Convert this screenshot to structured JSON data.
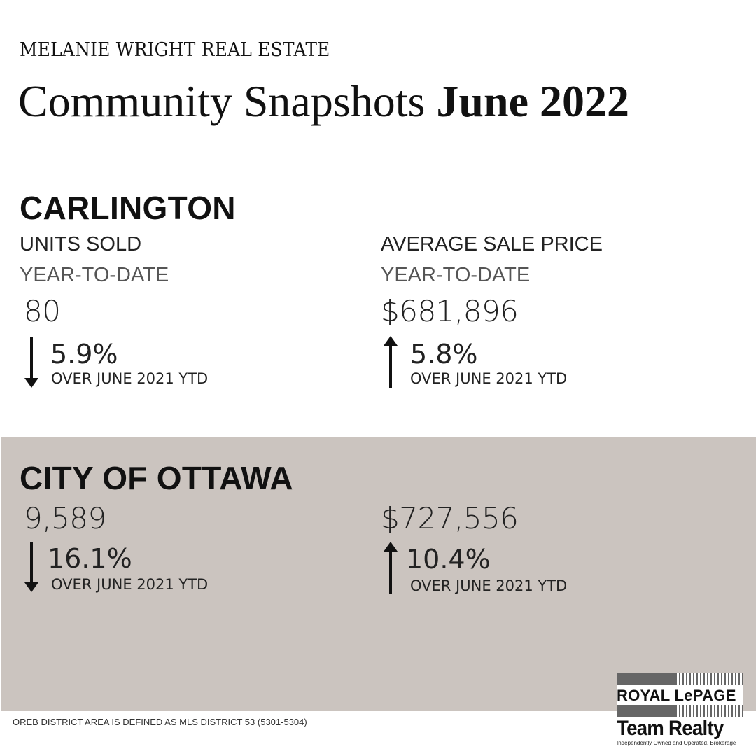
{
  "header": {
    "brand": "MELANIE WRIGHT REAL ESTATE",
    "title_prefix": "Community Snapshots",
    "title_bold": "June 2022"
  },
  "carlington": {
    "name": "CARLINGTON",
    "units": {
      "label": "UNITS SOLD",
      "period": "YEAR-TO-DATE",
      "value": "80",
      "change": "5.9%",
      "direction": "down",
      "comparison": "OVER JUNE 2021 YTD"
    },
    "price": {
      "label": "AVERAGE SALE PRICE",
      "period": "YEAR-TO-DATE",
      "value": "$681,896",
      "change": "5.8%",
      "direction": "up",
      "comparison": "OVER JUNE 2021 YTD"
    }
  },
  "ottawa": {
    "name": "CITY OF OTTAWA",
    "units": {
      "value": "9,589",
      "change": "16.1%",
      "direction": "down",
      "comparison": "OVER JUNE 2021 YTD"
    },
    "price": {
      "value": "$727,556",
      "change": "10.4%",
      "direction": "up",
      "comparison": "OVER JUNE 2021 YTD"
    }
  },
  "footnote": "OREB DISTRICT AREA IS DEFINED AS MLS DISTRICT 53 (5301-5304)",
  "logo": {
    "line1": "ROYAL LePAGE",
    "line2": "Team Realty",
    "line3": "Independently Owned and Operated, Brokerage"
  },
  "colors": {
    "panel_background": "#cbc4bf",
    "text": "#111111"
  },
  "icons": {
    "down": "arrow-down-icon",
    "up": "arrow-up-icon"
  }
}
